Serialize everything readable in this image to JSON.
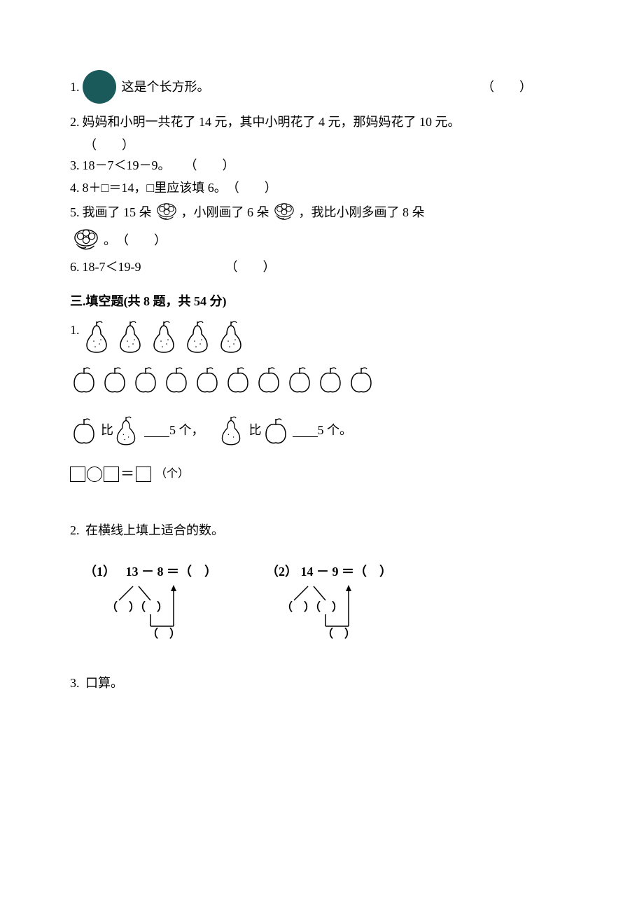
{
  "q1": {
    "num": "1.",
    "text": "这是个长方形。",
    "paren": "（　　）"
  },
  "q2": {
    "num": "2.",
    "text": "妈妈和小明一共花了 14 元，其中小明花了 4 元，那妈妈花了 10 元。",
    "paren": "（　　）"
  },
  "q3": {
    "num": "3.",
    "text": "18－7＜19－9。",
    "paren": "（　　）"
  },
  "q4": {
    "num": "4.",
    "text": "8＋□＝14，□里应该填 6。",
    "paren": "（　　）"
  },
  "q5": {
    "num": "5.",
    "part1": "我画了 15 朵",
    "part2": "，小刚画了 6 朵",
    "part3": "，我比小刚多画了 8 朵",
    "part4": "。",
    "paren": "（　　）"
  },
  "q6": {
    "num": "6.",
    "text": "18-7＜19-9",
    "paren": "（　　）"
  },
  "section3": {
    "title": "三.填空题(共 8 题，共 54 分)"
  },
  "fill1": {
    "num": "1.",
    "pear_count": 5,
    "apple_count": 10,
    "comp1_mid": "比",
    "comp1_suffix": "5 个，",
    "comp2_mid": "比",
    "comp2_suffix": "5 个。",
    "eq_eq": "＝",
    "eq_unit": "（个）"
  },
  "fill2": {
    "num": "2.",
    "text": "在横线上填上适合的数。",
    "d1": {
      "label": "（1）",
      "expr": "13 － 8 ＝（　）"
    },
    "d2": {
      "label": "（2）",
      "expr": "14 － 9 ＝（　）"
    }
  },
  "fill3": {
    "num": "3.",
    "text": "口算。"
  },
  "colors": {
    "circle_fill": "#1a5a5a",
    "stroke": "#000000",
    "bg": "#ffffff"
  }
}
